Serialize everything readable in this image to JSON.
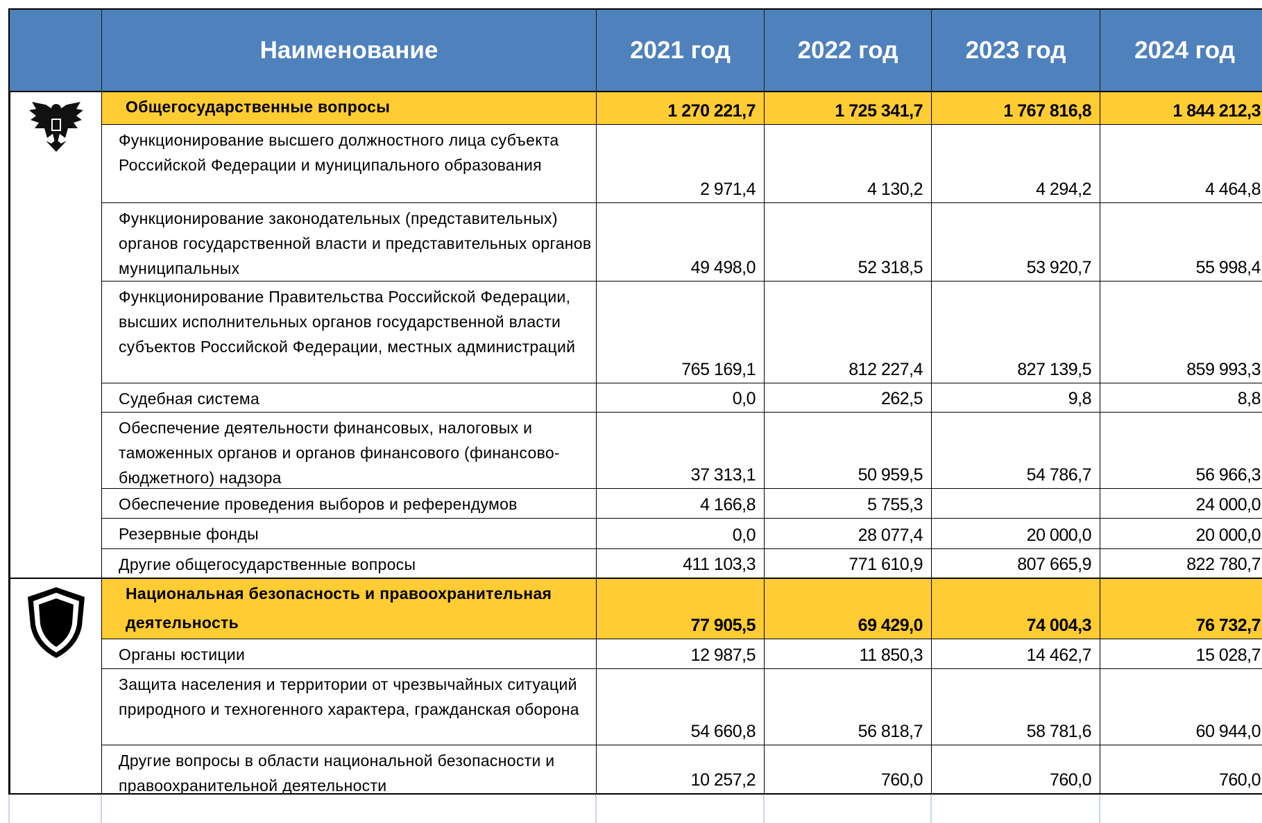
{
  "table": {
    "columns": [
      "Наименование",
      "2021 год",
      "2022 год",
      "2023 год",
      "2024 год"
    ],
    "sections": [
      {
        "title": "Общегосударственные вопросы",
        "totals": [
          "1 270 221,7",
          "1 725 341,7",
          "1 767 816,8",
          "1 844 212,3"
        ],
        "rows": [
          {
            "name": "Функционирование высшего должностного лица субъекта Российской Федерации и муниципального образования",
            "values": [
              "2 971,4",
              "4 130,2",
              "4 294,2",
              "4 464,8"
            ]
          },
          {
            "name": "Функционирование законодательных (представительных) органов государственной власти и представительных органов муниципальных",
            "values": [
              "49 498,0",
              "52 318,5",
              "53 920,7",
              "55 998,4"
            ]
          },
          {
            "name": "Функционирование Правительства Российской Федерации, высших исполнительных органов государственной власти субъектов Российской Федерации, местных администраций",
            "values": [
              "765 169,1",
              "812 227,4",
              "827 139,5",
              "859 993,3"
            ]
          },
          {
            "name": "Судебная система",
            "values": [
              "0,0",
              "262,5",
              "9,8",
              "8,8"
            ]
          },
          {
            "name": "Обеспечение деятельности финансовых, налоговых и таможенных органов и органов финансового (финансово-бюджетного) надзора",
            "values": [
              "37 313,1",
              "50 959,5",
              "54 786,7",
              "56 966,3"
            ]
          },
          {
            "name": "Обеспечение проведения выборов и референдумов",
            "values": [
              "4 166,8",
              "5 755,3",
              null,
              "24 000,0"
            ]
          },
          {
            "name": "Резервные фонды",
            "values": [
              "0,0",
              "28 077,4",
              "20 000,0",
              "20 000,0"
            ]
          },
          {
            "name": "Другие общегосударственные вопросы",
            "values": [
              "411 103,3",
              "771 610,9",
              "807 665,9",
              "822 780,7"
            ]
          }
        ]
      },
      {
        "title": "Национальная безопасность и правоохранительная деятельность",
        "totals": [
          "77 905,5",
          "69 429,0",
          "74 004,3",
          "76 732,7"
        ],
        "rows": [
          {
            "name": "Органы юстиции",
            "values": [
              "12 987,5",
              "11 850,3",
              "14 462,7",
              "15 028,7"
            ]
          },
          {
            "name": "Защита населения и территории от чрезвычайных ситуаций природного и техногенного характера, гражданская оборона",
            "values": [
              "54 660,8",
              "56 818,7",
              "58 781,6",
              "60 944,0"
            ]
          },
          {
            "name": "Другие вопросы в области национальной безопасности и правоохранительной деятельности",
            "values": [
              "10 257,2",
              "760,0",
              "760,0",
              "760,0"
            ]
          }
        ]
      }
    ]
  }
}
